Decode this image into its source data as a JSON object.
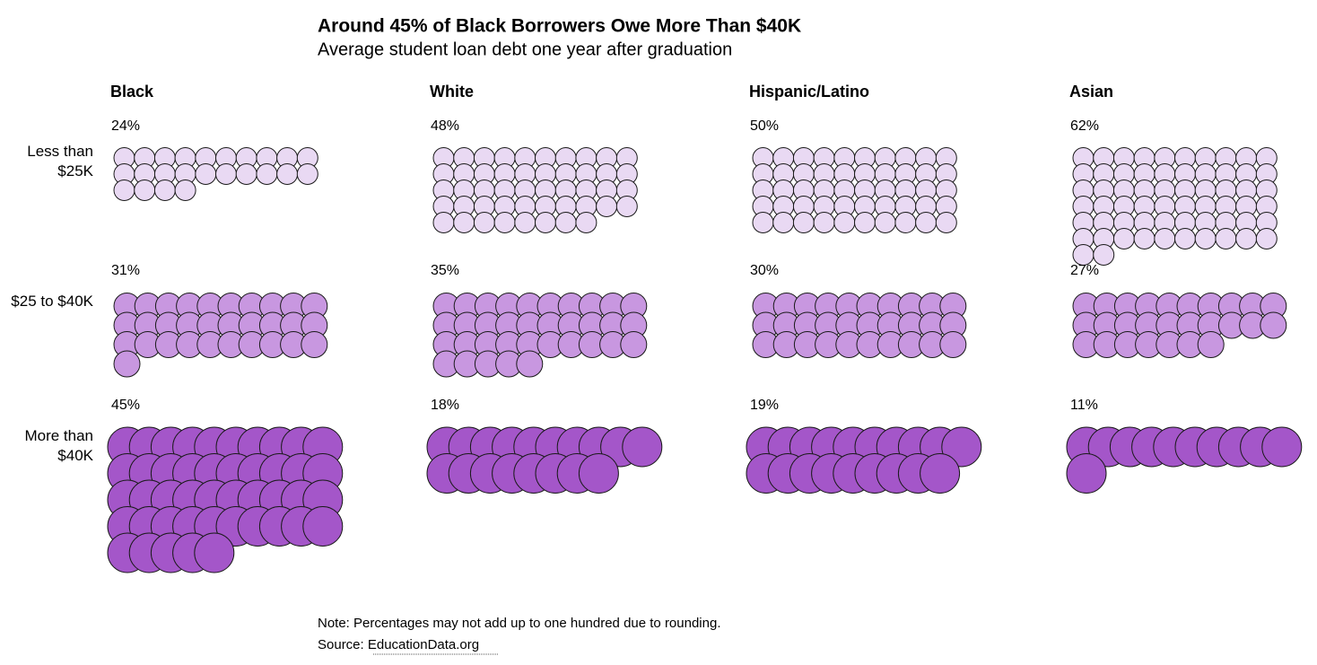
{
  "chart_data": {
    "type": "unit",
    "title": "Around 45% of Black Borrowers Owe More Than $40K",
    "subtitle": "Average student loan debt one year after graduation",
    "categories": [
      "Less than $25K",
      "$25 to $40K",
      "More than $40K"
    ],
    "colors": [
      "#e9d9f3",
      "#c897e0",
      "#a456c9"
    ],
    "series": [
      {
        "name": "Black",
        "values": [
          24,
          31,
          45
        ],
        "value_labels": [
          "24%",
          "31%",
          "45%"
        ]
      },
      {
        "name": "White",
        "values": [
          48,
          35,
          18
        ],
        "value_labels": [
          "48%",
          "35%",
          "18%"
        ]
      },
      {
        "name": "Hispanic/Latino",
        "values": [
          50,
          30,
          19
        ],
        "value_labels": [
          "50%",
          "30%",
          "19%"
        ]
      },
      {
        "name": "Asian",
        "values": [
          62,
          27,
          11
        ],
        "value_labels": [
          "62%",
          "27%",
          "11%"
        ]
      }
    ],
    "note": "Note: Percentages may not add up to one hundred due to rounding.",
    "source": "Source: EducationData.org"
  }
}
